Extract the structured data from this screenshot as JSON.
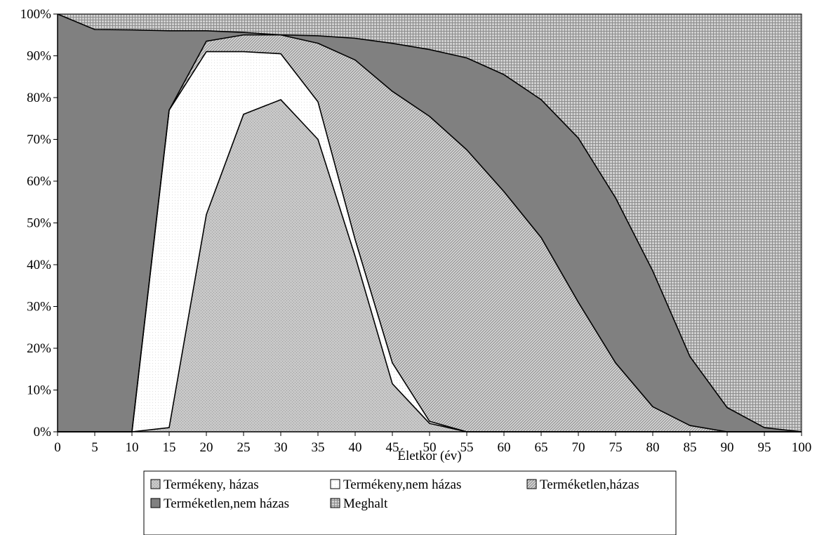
{
  "chart_data": {
    "type": "area",
    "stacked": "percent",
    "xlabel": "Életkor (év)",
    "ylabel": "",
    "x": [
      0,
      5,
      10,
      15,
      20,
      25,
      30,
      35,
      40,
      45,
      50,
      55,
      60,
      65,
      70,
      75,
      80,
      85,
      90,
      95,
      100
    ],
    "xlim": [
      0,
      100
    ],
    "ylim": [
      0,
      100
    ],
    "y_tick_labels": [
      "0%",
      "10%",
      "20%",
      "30%",
      "40%",
      "50%",
      "60%",
      "70%",
      "80%",
      "90%",
      "100%"
    ],
    "x_tick_labels": [
      "0",
      "5",
      "10",
      "15",
      "20",
      "25",
      "30",
      "35",
      "40",
      "45",
      "50",
      "55",
      "60",
      "65",
      "70",
      "75",
      "80",
      "85",
      "90",
      "95",
      "100"
    ],
    "series": [
      {
        "name": "Termékeny, házas",
        "pattern": "light-gray-dots",
        "color": "#c4c4c4",
        "values": [
          0,
          0,
          0,
          1,
          52,
          76,
          79.5,
          70,
          42,
          11.5,
          2,
          0,
          0,
          0,
          0,
          0,
          0,
          0,
          0,
          0,
          0
        ]
      },
      {
        "name": "Termékeny,nem házas",
        "pattern": "white-fine-dots",
        "color": "#ffffff",
        "values": [
          0,
          0,
          0,
          76,
          39,
          15,
          11,
          9,
          4,
          5,
          0.5,
          0,
          0,
          0,
          0,
          0,
          0,
          0,
          0,
          0,
          0
        ]
      },
      {
        "name": "Terméketlen,házas",
        "pattern": "diagonal-hatch",
        "color": "#b8b8b8",
        "values": [
          0,
          0,
          0,
          0,
          2.5,
          4,
          4.5,
          14,
          43,
          65,
          73,
          67.5,
          57.5,
          46.5,
          31,
          16.5,
          6,
          1.5,
          0,
          0,
          0
        ]
      },
      {
        "name": "Terméketlen,nem házas",
        "pattern": "solid-dark-gray",
        "color": "#808080",
        "values": [
          100,
          96.3,
          96.2,
          19,
          2.5,
          0.6,
          0,
          1.8,
          5.2,
          11.5,
          16,
          22,
          28,
          33,
          39.3,
          39.5,
          32.5,
          16.5,
          5.8,
          1,
          0
        ]
      },
      {
        "name": "Meghalt",
        "pattern": "grid-hatch",
        "color": "#a0a0a0",
        "values": [
          0,
          3.7,
          3.8,
          4,
          4,
          4.4,
          5,
          5.2,
          5.8,
          7,
          8.5,
          10.5,
          14.5,
          20.5,
          29.7,
          44,
          61.5,
          82,
          94.2,
          99,
          100
        ]
      }
    ],
    "grid": false,
    "legend": "bottom"
  }
}
